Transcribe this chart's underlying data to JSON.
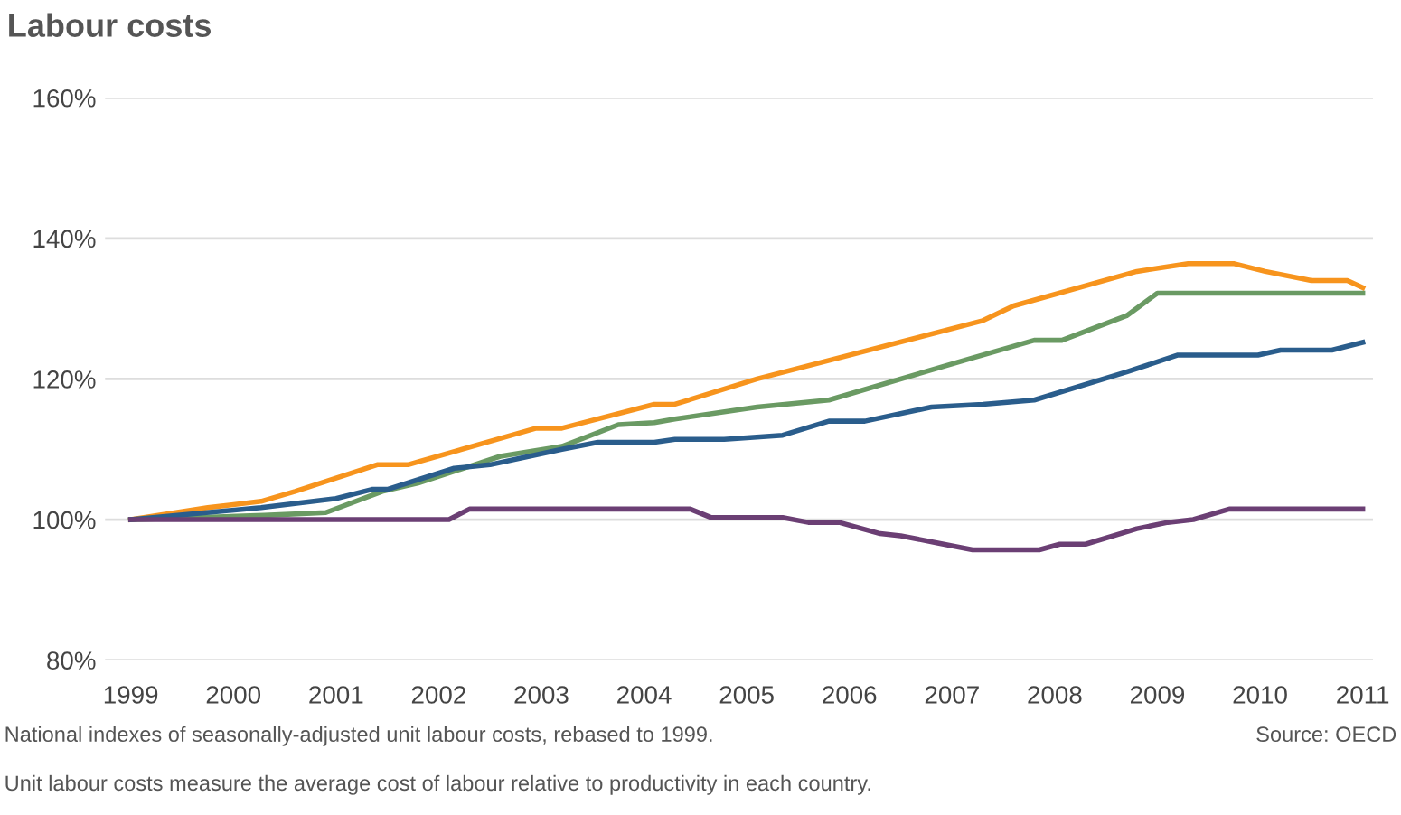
{
  "chart_data": {
    "type": "line",
    "title": "Labour costs",
    "xlim": [
      1998.75,
      2011.1
    ],
    "xticks": [
      1999,
      2000,
      2001,
      2002,
      2003,
      2004,
      2005,
      2006,
      2007,
      2008,
      2009,
      2010,
      2011
    ],
    "ylim": [
      80,
      160
    ],
    "yticks": [
      {
        "value": 80,
        "label": "80%"
      },
      {
        "value": 100,
        "label": "100%"
      },
      {
        "value": 120,
        "label": "120%"
      },
      {
        "value": 140,
        "label": "140%"
      },
      {
        "value": 160,
        "label": "160%"
      }
    ],
    "grid": "y",
    "legend": false,
    "marker": "none",
    "line_style": "solid",
    "annotations": [
      "National indexes of seasonally-adjusted unit labour costs, rebased to 1999.",
      "Source: OECD",
      "Unit labour costs measure the average cost of labour relative to productivity in each country."
    ],
    "series": [
      {
        "color": "#f7941d",
        "x": [
          1999,
          1999.75,
          2000.27,
          2000.6,
          2001.4,
          2001.7,
          2002.95,
          2003.2,
          2004.1,
          2004.3,
          2005.1,
          2007.3,
          2007.6,
          2008.8,
          2009.3,
          2009.75,
          2010.05,
          2010.5,
          2010.85,
          2011
        ],
        "values": [
          100,
          101.7,
          102.6,
          104,
          107.8,
          107.8,
          113,
          113,
          116.4,
          116.4,
          120,
          128.3,
          130.4,
          135.3,
          136.4,
          136.4,
          135.3,
          134,
          134,
          133
        ]
      },
      {
        "color": "#6a9a63",
        "x": [
          1999,
          2000.3,
          2000.9,
          2001.45,
          2001.8,
          2002.6,
          2003.2,
          2003.75,
          2004.1,
          2004.3,
          2005.1,
          2005.8,
          2007.2,
          2007.8,
          2008.07,
          2008.7,
          2009,
          2011
        ],
        "values": [
          100,
          100.6,
          101,
          104,
          105.2,
          109,
          110.4,
          113.5,
          113.8,
          114.3,
          116,
          117,
          123,
          125.5,
          125.5,
          129,
          132.2,
          132.2
        ]
      },
      {
        "color": "#2a5d8c",
        "x": [
          1999,
          2000.27,
          2001,
          2001.35,
          2001.5,
          2002.15,
          2002.5,
          2003.2,
          2003.55,
          2004.1,
          2004.3,
          2004.78,
          2005.35,
          2005.8,
          2006.15,
          2006.8,
          2007.3,
          2007.8,
          2008.7,
          2009.2,
          2009.98,
          2010.2,
          2010.7,
          2011
        ],
        "values": [
          100,
          101.7,
          103,
          104.3,
          104.3,
          107.3,
          107.8,
          110,
          111,
          111,
          111.4,
          111.4,
          112,
          114,
          114,
          116,
          116.4,
          117,
          121,
          123.4,
          123.4,
          124.1,
          124.1,
          125.2
        ]
      },
      {
        "color": "#6b3f74",
        "x": [
          1999,
          2002.1,
          2002.3,
          2004.45,
          2004.65,
          2005.35,
          2005.6,
          2005.9,
          2006.3,
          2006.5,
          2006.85,
          2007.2,
          2007.85,
          2008.05,
          2008.3,
          2008.8,
          2009.1,
          2009.35,
          2009.7,
          2011
        ],
        "values": [
          100,
          100,
          101.5,
          101.5,
          100.3,
          100.3,
          99.6,
          99.6,
          98,
          97.7,
          96.7,
          95.7,
          95.7,
          96.5,
          96.5,
          98.7,
          99.6,
          100,
          101.5,
          101.5
        ]
      }
    ]
  }
}
